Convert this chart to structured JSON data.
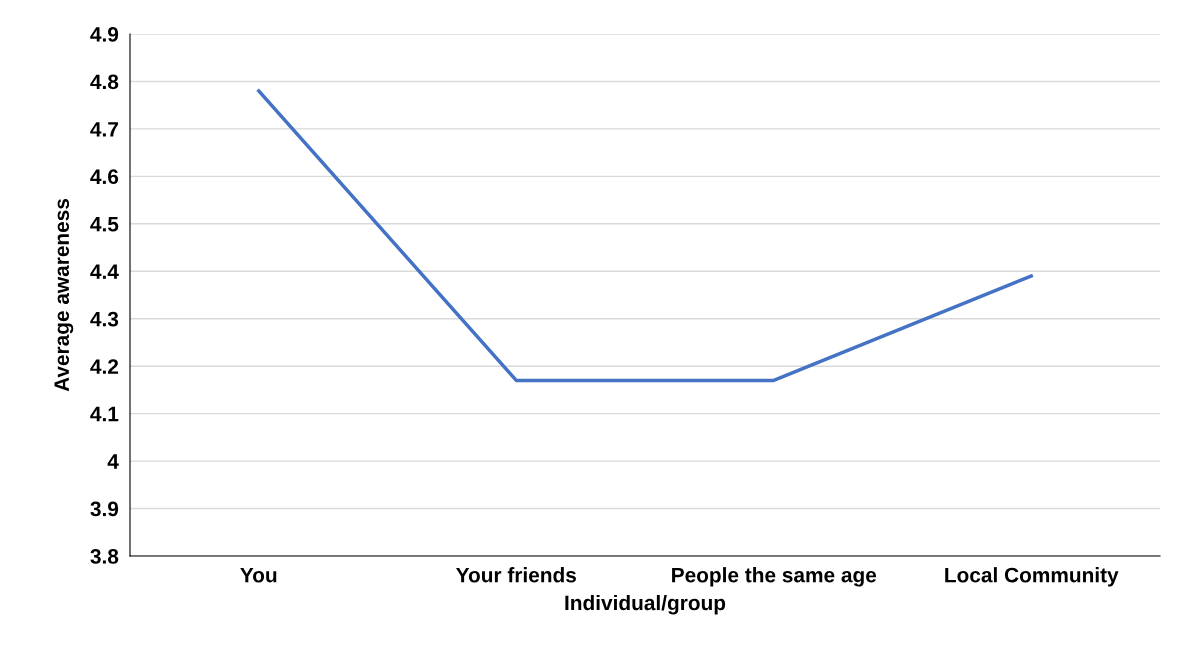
{
  "chart_data": {
    "type": "line",
    "xlabel": "Individual/group",
    "ylabel": "Average awareness",
    "categories": [
      "You",
      "Your friends",
      "People the same age",
      "Local Community"
    ],
    "series": [
      {
        "color": "#4472c4",
        "values": [
          4.78,
          4.17,
          4.17,
          4.39
        ]
      }
    ],
    "ylim": [
      3.8,
      4.9
    ],
    "yticks": [
      3.8,
      3.9,
      4,
      4.1,
      4.2,
      4.3,
      4.4,
      4.5,
      4.6,
      4.7,
      4.8,
      4.9
    ],
    "grid": "y",
    "marker": "none",
    "line_style": "solid"
  }
}
